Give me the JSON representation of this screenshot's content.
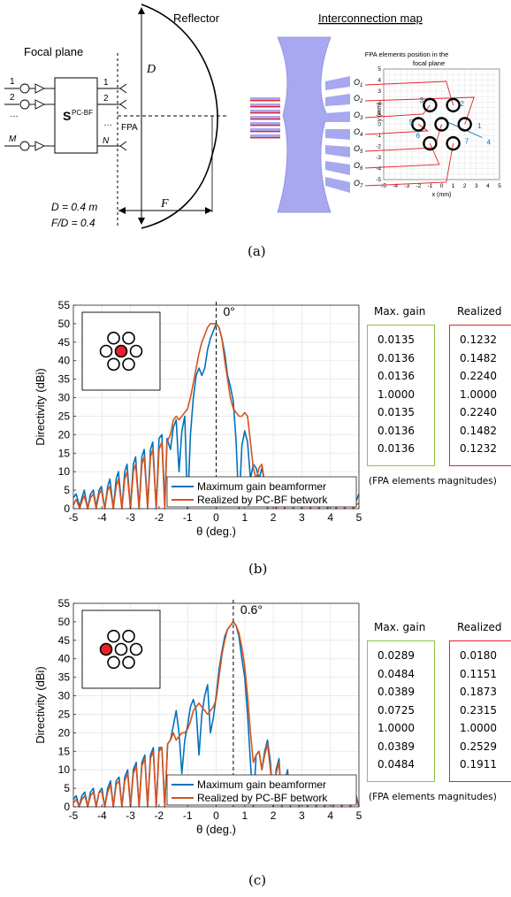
{
  "panel_a": {
    "labels": {
      "focal_plane": "Focal plane",
      "reflector": "Reflector",
      "interconnection_map": "Interconnection map",
      "s_matrix": "S",
      "s_sup": "PC-BF",
      "fpa": "FPA",
      "D": "D",
      "F": "F",
      "d_eq": "D = 0.4 m",
      "fd_eq": "F/D = 0.4",
      "ports_in": [
        "1",
        "2",
        "…",
        "M"
      ],
      "ports_out": [
        "1",
        "2",
        "…",
        "N"
      ]
    },
    "outputs": [
      "O1",
      "O2",
      "O3",
      "O4",
      "O5",
      "O6",
      "O7"
    ],
    "fpa_plot": {
      "title_line1": "FPA elements position in the",
      "title_line2": "focal plane",
      "xlabel": "x (mm)",
      "ylabel": "y (mm)",
      "ticks": [
        "-5",
        "-4",
        "-3",
        "-2",
        "-1",
        "0",
        "1",
        "2",
        "3",
        "4",
        "5"
      ],
      "element_numbers": [
        "1",
        "2",
        "3",
        "4",
        "5",
        "6",
        "7"
      ]
    }
  },
  "chart_data": [
    {
      "type": "line",
      "ylabel": "Directivity (dBi)",
      "xlabel": "θ (deg.)",
      "xlim": [
        -5,
        5
      ],
      "ylim": [
        0,
        55
      ],
      "xticks": [
        -5,
        -4,
        -3,
        -2,
        -1,
        0,
        1,
        2,
        3,
        4,
        5
      ],
      "yticks": [
        0,
        5,
        10,
        15,
        20,
        25,
        30,
        35,
        40,
        45,
        50,
        55
      ],
      "grid": true,
      "legend_position": "bottom-right",
      "steer_label": "0°",
      "steer_angle": 0,
      "highlighted_element": "center",
      "series": [
        {
          "name": "Maximum gain beamformer",
          "color": "#0072bd",
          "x": [
            -5,
            -4.9,
            -4.78,
            -4.7,
            -4.62,
            -4.5,
            -4.4,
            -4.3,
            -4.2,
            -4.1,
            -4.02,
            -3.9,
            -3.8,
            -3.72,
            -3.6,
            -3.5,
            -3.42,
            -3.3,
            -3.2,
            -3.12,
            -3.0,
            -2.9,
            -2.82,
            -2.7,
            -2.6,
            -2.52,
            -2.4,
            -2.3,
            -2.22,
            -2.1,
            -2.0,
            -1.9,
            -1.8,
            -1.72,
            -1.6,
            -1.5,
            -1.4,
            -1.3,
            -1.2,
            -1.1,
            -1.0,
            -0.9,
            -0.8,
            -0.7,
            -0.6,
            -0.5,
            -0.4,
            -0.3,
            -0.2,
            -0.1,
            0,
            0.1,
            0.2,
            0.3,
            0.4,
            0.5,
            0.6,
            0.7,
            0.8,
            0.9,
            1.0,
            1.1,
            1.2,
            1.3,
            1.4,
            1.5,
            1.6,
            1.7,
            1.8,
            1.9,
            2.0,
            2.1,
            2.2,
            2.3,
            2.4,
            2.5,
            2.6,
            2.7,
            2.8,
            2.9,
            3.0,
            3.1,
            3.2,
            3.3,
            3.4,
            3.5,
            3.6,
            3.7,
            3.8,
            3.9,
            4.0,
            4.1,
            4.2,
            4.3,
            4.4,
            4.5,
            4.6,
            4.7,
            4.8,
            4.9,
            5
          ],
          "y": [
            3,
            4,
            0.5,
            3,
            5,
            0,
            4,
            5,
            0.5,
            5,
            6,
            0,
            6,
            8,
            0,
            8,
            10,
            0,
            10,
            12,
            0,
            12,
            14,
            0,
            14,
            16,
            0.5,
            16,
            18,
            0,
            19,
            20,
            1,
            19,
            16,
            22,
            24,
            10,
            21,
            25,
            0,
            20,
            30,
            36,
            38,
            36,
            38,
            43,
            46,
            48,
            50,
            49,
            46,
            42,
            36,
            33,
            29,
            18,
            0,
            17,
            21,
            18,
            8,
            12,
            11,
            8,
            11,
            7,
            0,
            6,
            8,
            0,
            6,
            7,
            0,
            5,
            6,
            0,
            5,
            6,
            0,
            5,
            4,
            0,
            3,
            4,
            0,
            3,
            2.5,
            0,
            2.5,
            3,
            0,
            2,
            2.5,
            0,
            2,
            2.5,
            0,
            2,
            4
          ]
        },
        {
          "name": "Realized by PC-BF betwork",
          "color": "#d95319",
          "x": [
            -5,
            -4.9,
            -4.78,
            -4.7,
            -4.62,
            -4.5,
            -4.4,
            -4.3,
            -4.2,
            -4.1,
            -4.02,
            -3.9,
            -3.8,
            -3.72,
            -3.6,
            -3.5,
            -3.42,
            -3.3,
            -3.2,
            -3.12,
            -3.0,
            -2.9,
            -2.82,
            -2.7,
            -2.6,
            -2.52,
            -2.4,
            -2.3,
            -2.22,
            -2.1,
            -2.0,
            -1.9,
            -1.8,
            -1.72,
            -1.6,
            -1.5,
            -1.4,
            -1.3,
            -1.2,
            -1.1,
            -1.0,
            -0.9,
            -0.8,
            -0.7,
            -0.6,
            -0.5,
            -0.4,
            -0.3,
            -0.2,
            -0.1,
            0,
            0.1,
            0.2,
            0.3,
            0.4,
            0.5,
            0.6,
            0.7,
            0.8,
            0.9,
            1.0,
            1.1,
            1.2,
            1.3,
            1.4,
            1.5,
            1.6,
            1.7,
            1.8,
            1.9,
            2.0,
            2.1,
            2.2,
            2.3,
            2.4,
            2.5,
            2.6,
            2.7,
            2.8,
            2.9,
            3.0,
            3.1,
            3.2,
            3.3,
            3.4,
            3.5,
            3.6,
            3.7,
            3.8,
            3.9,
            4.0,
            4.1,
            4.2,
            4.3,
            4.4,
            4.5,
            4.6,
            4.7,
            4.8,
            4.9,
            5
          ],
          "y": [
            1,
            2.5,
            0,
            2,
            3.5,
            0,
            3,
            4,
            0,
            4,
            5,
            0,
            5,
            6,
            0,
            6,
            8,
            0,
            8,
            10,
            0,
            10,
            12,
            0,
            12,
            14,
            0,
            14,
            16,
            0,
            16,
            18,
            0,
            18,
            20,
            24,
            25,
            24,
            25,
            26,
            27,
            30,
            34,
            38,
            42,
            45,
            47,
            49,
            50,
            50,
            50,
            49,
            46,
            40,
            35,
            30,
            27,
            26,
            25,
            25,
            26,
            25,
            18,
            11,
            8,
            11,
            12,
            7,
            0,
            6,
            8,
            0,
            5,
            6,
            0,
            4,
            5,
            0,
            4,
            5,
            0,
            3,
            4,
            0,
            2,
            3,
            0,
            2,
            2.5,
            0,
            2,
            2.5,
            0,
            2,
            2.5,
            0,
            1.5,
            2,
            0,
            1,
            1.5
          ]
        }
      ]
    },
    {
      "type": "line",
      "ylabel": "Directivity (dBi)",
      "xlabel": "θ (deg.)",
      "xlim": [
        -5,
        5
      ],
      "ylim": [
        0,
        55
      ],
      "xticks": [
        -5,
        -4,
        -3,
        -2,
        -1,
        0,
        1,
        2,
        3,
        4,
        5
      ],
      "yticks": [
        0,
        5,
        10,
        15,
        20,
        25,
        30,
        35,
        40,
        45,
        50,
        55
      ],
      "grid": true,
      "legend_position": "bottom-right",
      "steer_label": "0.6°",
      "steer_angle": 0.6,
      "highlighted_element": "left",
      "series": [
        {
          "name": "Maximum gain beamformer",
          "color": "#0072bd",
          "x": [
            -5,
            -4.9,
            -4.8,
            -4.7,
            -4.6,
            -4.5,
            -4.4,
            -4.3,
            -4.2,
            -4.1,
            -4.0,
            -3.9,
            -3.8,
            -3.7,
            -3.6,
            -3.5,
            -3.4,
            -3.3,
            -3.2,
            -3.1,
            -3.0,
            -2.9,
            -2.8,
            -2.7,
            -2.6,
            -2.5,
            -2.4,
            -2.3,
            -2.2,
            -2.1,
            -2.0,
            -1.9,
            -1.8,
            -1.7,
            -1.6,
            -1.5,
            -1.4,
            -1.3,
            -1.2,
            -1.1,
            -1.0,
            -0.9,
            -0.8,
            -0.7,
            -0.6,
            -0.5,
            -0.4,
            -0.3,
            -0.2,
            -0.1,
            0,
            0.1,
            0.2,
            0.3,
            0.4,
            0.5,
            0.6,
            0.7,
            0.8,
            0.9,
            1.0,
            1.1,
            1.2,
            1.3,
            1.4,
            1.5,
            1.6,
            1.7,
            1.8,
            1.9,
            2.0,
            2.1,
            2.2,
            2.3,
            2.4,
            2.5,
            2.6,
            2.7,
            2.8,
            2.9,
            3.0,
            3.1,
            3.2,
            3.3,
            3.4,
            3.5,
            3.6,
            3.7,
            3.8,
            3.9,
            4.0,
            4.1,
            4.2,
            4.3,
            4.4,
            4.5,
            4.6,
            4.7,
            4.8,
            4.9,
            5
          ],
          "y": [
            2,
            3,
            0,
            3,
            4,
            0,
            4,
            5,
            0,
            4,
            5,
            0,
            5,
            7,
            0,
            7,
            8,
            0,
            8,
            10,
            0,
            10,
            12,
            0,
            12,
            14,
            0,
            14,
            16,
            0,
            16,
            16,
            0,
            17,
            18,
            22,
            26,
            20,
            9,
            18,
            22,
            27,
            29,
            26,
            14,
            25,
            30,
            33,
            20,
            24,
            30,
            37,
            42,
            46,
            48,
            49,
            50,
            49,
            46,
            40,
            35,
            25,
            12,
            0,
            14,
            15,
            10,
            15,
            18,
            12,
            0,
            10,
            13,
            0,
            7,
            10,
            0,
            5,
            8,
            0,
            4,
            5,
            0,
            3,
            4,
            0,
            3,
            3.5,
            0,
            2.5,
            3,
            0,
            2,
            2.5,
            0,
            2,
            2.5,
            0,
            2,
            3,
            0
          ]
        },
        {
          "name": "Realized by PC-BF betwork",
          "color": "#d95319",
          "x": [
            -5,
            -4.9,
            -4.8,
            -4.7,
            -4.6,
            -4.5,
            -4.4,
            -4.3,
            -4.2,
            -4.1,
            -4.0,
            -3.9,
            -3.8,
            -3.7,
            -3.6,
            -3.5,
            -3.4,
            -3.3,
            -3.2,
            -3.1,
            -3.0,
            -2.9,
            -2.8,
            -2.7,
            -2.6,
            -2.5,
            -2.4,
            -2.3,
            -2.2,
            -2.1,
            -2.0,
            -1.9,
            -1.8,
            -1.7,
            -1.6,
            -1.5,
            -1.4,
            -1.3,
            -1.2,
            -1.1,
            -1.0,
            -0.9,
            -0.8,
            -0.7,
            -0.6,
            -0.5,
            -0.4,
            -0.3,
            -0.2,
            -0.1,
            0,
            0.1,
            0.2,
            0.3,
            0.4,
            0.5,
            0.6,
            0.7,
            0.8,
            0.9,
            1.0,
            1.1,
            1.2,
            1.3,
            1.4,
            1.5,
            1.6,
            1.7,
            1.8,
            1.9,
            2.0,
            2.1,
            2.2,
            2.3,
            2.4,
            2.5,
            2.6,
            2.7,
            2.8,
            2.9,
            3.0,
            3.1,
            3.2,
            3.3,
            3.4,
            3.5,
            3.6,
            3.7,
            3.8,
            3.9,
            4.0,
            4.1,
            4.2,
            4.3,
            4.4,
            4.5,
            4.6,
            4.7,
            4.8,
            4.9,
            5
          ],
          "y": [
            1,
            2,
            0,
            2,
            3,
            0,
            3,
            4,
            0,
            4,
            4,
            0,
            4,
            6,
            0,
            6,
            7,
            0,
            7,
            9,
            0,
            9,
            11,
            0,
            11,
            13,
            0,
            13,
            15,
            0,
            15,
            16,
            0,
            17,
            18,
            20,
            18,
            19,
            20,
            20,
            21,
            23,
            26,
            27,
            28,
            27,
            26,
            25,
            26,
            27,
            29,
            35,
            41,
            45,
            48,
            49,
            50,
            49,
            47,
            43,
            38,
            30,
            20,
            12,
            14,
            15,
            10,
            14,
            17,
            10,
            0,
            9,
            12,
            0,
            7,
            9,
            0,
            5,
            7,
            0,
            4,
            5,
            0,
            3,
            4,
            0,
            2.5,
            3,
            0,
            2,
            2.5,
            0,
            2,
            2.5,
            0,
            1.5,
            2,
            0,
            1.5,
            2,
            0
          ]
        }
      ]
    }
  ],
  "tables": [
    {
      "max_header": "Max. gain",
      "realized_header": "Realized",
      "max_gain": [
        "0.0135",
        "0.0136",
        "0.0136",
        "1.0000",
        "0.0135",
        "0.0136",
        "0.0136"
      ],
      "realized": [
        "0.1232",
        "0.1482",
        "0.2240",
        "1.0000",
        "0.2240",
        "0.1482",
        "0.1232"
      ],
      "note": "(FPA elements magnitudes)"
    },
    {
      "max_header": "Max. gain",
      "realized_header": "Realized",
      "max_gain": [
        "0.0289",
        "0.0484",
        "0.0389",
        "0.0725",
        "1.0000",
        "0.0389",
        "0.0484"
      ],
      "realized": [
        "0.0180",
        "0.1151",
        "0.1873",
        "0.2315",
        "1.0000",
        "0.2529",
        "0.1911"
      ],
      "note": "(FPA elements magnitudes)"
    }
  ],
  "captions": [
    "(a)",
    "(b)",
    "(c)"
  ],
  "colors": {
    "blue": "#0072bd",
    "orange": "#d95319",
    "green_box": "#8dc63f",
    "red_box": "#e8202a",
    "lens": "#a7a8ef",
    "red_line": "#e8202a"
  }
}
